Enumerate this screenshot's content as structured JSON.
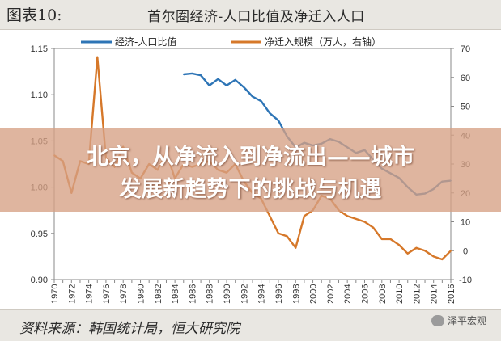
{
  "header": {
    "figure_label": "图表10:",
    "title": "首尔圈经济-人口比值及净迁入人口"
  },
  "banner": {
    "line1": "北京，从净流入到净流出——城市",
    "line2": "发展新趋势下的挑战与机遇"
  },
  "footer": {
    "source": "资料来源：韩国统计局，恒大研究院",
    "watermark": "泽平宏观"
  },
  "colors": {
    "series1": "#2e75b6",
    "series2": "#d6782a",
    "banner": "#d6a084"
  },
  "chart_data": {
    "type": "line",
    "title": "首尔圈经济-人口比值及净迁入人口",
    "x": [
      1970,
      1971,
      1972,
      1973,
      1974,
      1975,
      1976,
      1977,
      1978,
      1979,
      1980,
      1981,
      1982,
      1983,
      1984,
      1985,
      1986,
      1987,
      1988,
      1989,
      1990,
      1991,
      1992,
      1993,
      1994,
      1995,
      1996,
      1997,
      1998,
      1999,
      2000,
      2001,
      2002,
      2003,
      2004,
      2005,
      2006,
      2007,
      2008,
      2009,
      2010,
      2011,
      2012,
      2013,
      2014,
      2015,
      2016
    ],
    "x_tick_labels": [
      "1970",
      "1972",
      "1974",
      "1976",
      "1978",
      "1980",
      "1982",
      "1984",
      "1986",
      "1988",
      "1990",
      "1992",
      "1994",
      "1996",
      "1998",
      "2000",
      "2002",
      "2004",
      "2006",
      "2008",
      "2010",
      "2012",
      "2014",
      "2016"
    ],
    "y_left": {
      "ylim": [
        0.9,
        1.15
      ],
      "ticks": [
        "0.90",
        "0.95",
        "1.00",
        "1.05",
        "1.10",
        "1.15"
      ]
    },
    "y_right": {
      "ylim": [
        -10,
        70
      ],
      "ticks": [
        "-10",
        "0",
        "10",
        "20",
        "30",
        "40",
        "50",
        "60",
        "70"
      ]
    },
    "series": [
      {
        "name": "经济-人口比值",
        "axis": "left",
        "x": [
          1985,
          1986,
          1987,
          1988,
          1989,
          1990,
          1991,
          1992,
          1993,
          1994,
          1995,
          1996,
          1997,
          1998,
          1999,
          2000,
          2001,
          2002,
          2003,
          2004,
          2005,
          2006,
          2007,
          2008,
          2009,
          2010,
          2011,
          2012,
          2013,
          2014,
          2015,
          2016
        ],
        "values": [
          1.122,
          1.123,
          1.121,
          1.11,
          1.117,
          1.11,
          1.116,
          1.108,
          1.098,
          1.093,
          1.08,
          1.072,
          1.055,
          1.043,
          1.048,
          1.045,
          1.047,
          1.052,
          1.049,
          1.043,
          1.037,
          1.04,
          1.03,
          1.02,
          1.015,
          1.01,
          1.0,
          0.992,
          0.993,
          0.998,
          1.006,
          1.007
        ]
      },
      {
        "name": "净迁入规模（万人，右轴）",
        "axis": "right",
        "x": [
          1970,
          1971,
          1972,
          1973,
          1974,
          1975,
          1976,
          1977,
          1978,
          1979,
          1980,
          1981,
          1982,
          1983,
          1984,
          1985,
          1986,
          1987,
          1988,
          1989,
          1990,
          1991,
          1992,
          1993,
          1994,
          1995,
          1996,
          1997,
          1998,
          1999,
          2000,
          2001,
          2002,
          2003,
          2004,
          2005,
          2006,
          2007,
          2008,
          2009,
          2010,
          2011,
          2012,
          2013,
          2014,
          2015,
          2016
        ],
        "values": [
          33,
          31,
          20,
          31,
          30,
          67,
          32,
          29,
          36,
          27,
          25,
          30,
          28,
          34,
          25,
          30,
          29,
          30,
          31,
          28,
          27,
          30,
          24,
          20,
          18,
          12,
          6,
          5,
          1,
          12,
          14,
          19,
          18,
          14,
          12,
          11,
          10,
          8,
          4,
          4,
          2,
          -1,
          1,
          0,
          -2,
          -3,
          0
        ]
      }
    ]
  }
}
